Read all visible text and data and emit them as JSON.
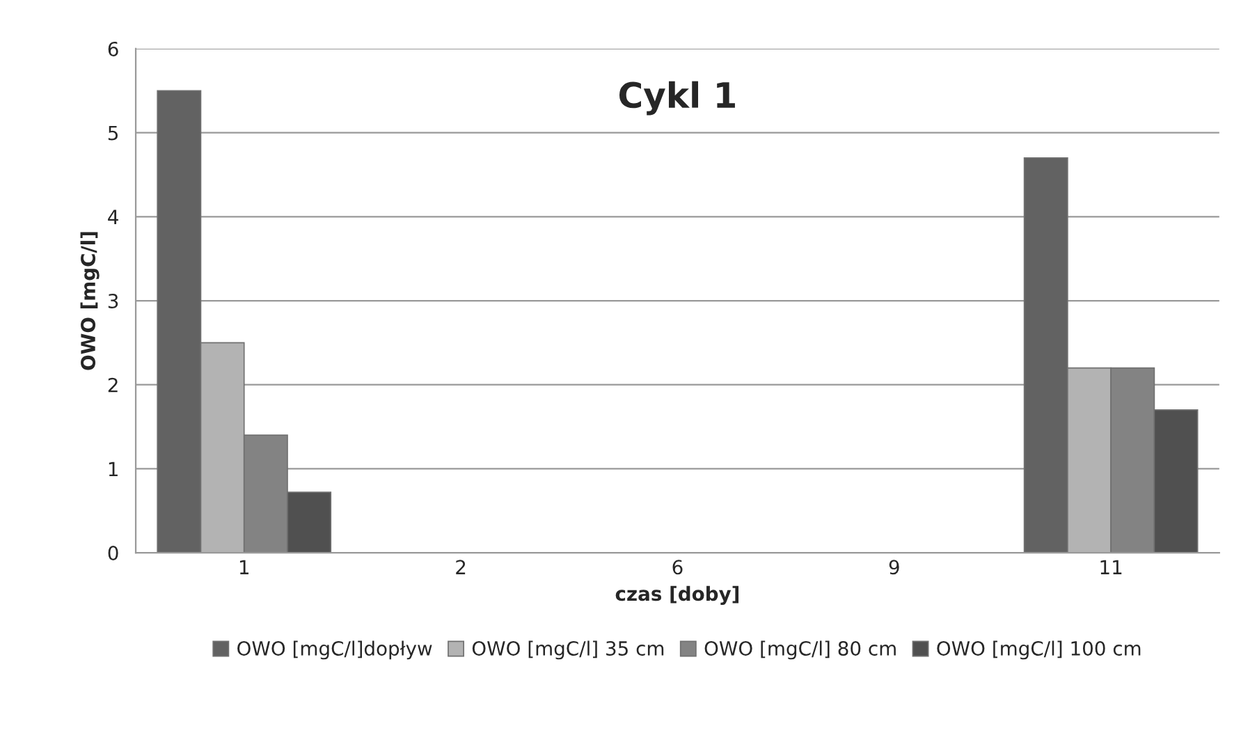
{
  "chart_data": {
    "type": "bar",
    "title": "Cykl 1",
    "xlabel": "czas [doby]",
    "ylabel": "OWO [mgC/l]",
    "categories": [
      "1",
      "2",
      "6",
      "9",
      "11"
    ],
    "series": [
      {
        "name": "OWO [mgC/l]dopływ",
        "color": "#626262",
        "values": [
          5.5,
          null,
          null,
          null,
          4.7
        ]
      },
      {
        "name": "OWO [mgC/l] 35 cm",
        "color": "#b3b3b3",
        "values": [
          2.5,
          null,
          null,
          null,
          2.2
        ]
      },
      {
        "name": "OWO [mgC/l] 80 cm",
        "color": "#838383",
        "values": [
          1.4,
          null,
          null,
          null,
          2.2
        ]
      },
      {
        "name": "OWO [mgC/l] 100 cm",
        "color": "#505050",
        "values": [
          0.72,
          null,
          null,
          null,
          1.7
        ]
      }
    ],
    "ylim": [
      0,
      6
    ],
    "yticks": [
      0,
      1,
      2,
      3,
      4,
      5,
      6
    ],
    "grid": "y",
    "legend": "bottom"
  }
}
